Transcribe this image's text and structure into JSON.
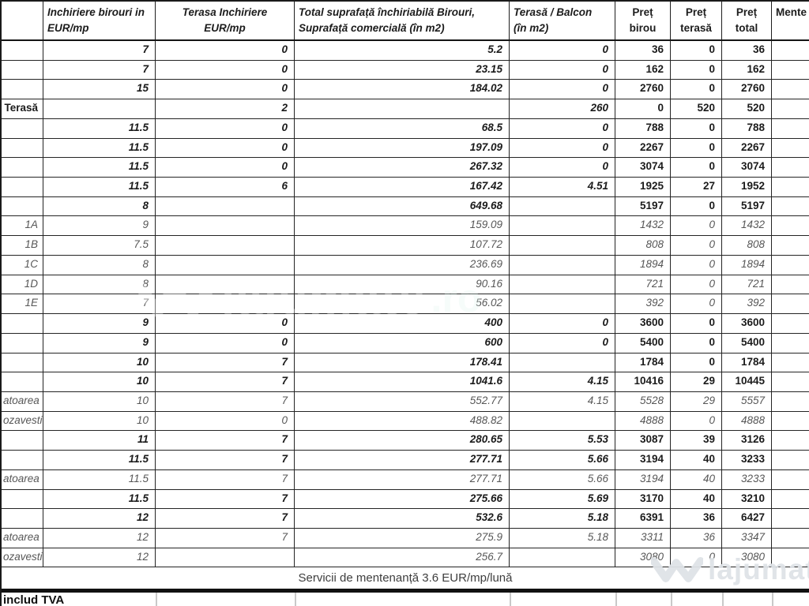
{
  "header": {
    "cols": [
      {
        "l1": "",
        "l2": ""
      },
      {
        "l1": "Inchiriere birouri in",
        "l2": "EUR/mp"
      },
      {
        "l1": "Terasa Inchiriere",
        "l2": "EUR/mp"
      },
      {
        "l1": "Total suprafață închiriabilă Birouri,",
        "l2": "Suprafață comercială (în m2)"
      },
      {
        "l1": "Terasă / Balcon",
        "l2": "(în m2)"
      },
      {
        "l1": "Preț",
        "l2": "birou"
      },
      {
        "l1": "Preț",
        "l2": "terasă"
      },
      {
        "l1": "Preț",
        "l2": "total"
      },
      {
        "l1": "Mente",
        "l2": ""
      }
    ]
  },
  "rows": [
    {
      "label": "",
      "style": "bold",
      "cells": [
        "7",
        "0",
        "5.2",
        "0",
        "36",
        "0",
        "36"
      ]
    },
    {
      "label": "",
      "style": "bold",
      "cells": [
        "7",
        "0",
        "23.15",
        "0",
        "162",
        "0",
        "162"
      ]
    },
    {
      "label": "",
      "style": "bold",
      "cells": [
        "15",
        "0",
        "184.02",
        "0",
        "2760",
        "0",
        "2760"
      ]
    },
    {
      "label": "Terasă",
      "style": "bold",
      "cells": [
        "",
        "2",
        "",
        "260",
        "0",
        "520",
        "520"
      ]
    },
    {
      "label": "",
      "style": "bold",
      "cells": [
        "11.5",
        "0",
        "68.5",
        "0",
        "788",
        "0",
        "788"
      ]
    },
    {
      "label": "",
      "style": "bold",
      "cells": [
        "11.5",
        "0",
        "197.09",
        "0",
        "2267",
        "0",
        "2267"
      ]
    },
    {
      "label": "",
      "style": "bold",
      "cells": [
        "11.5",
        "0",
        "267.32",
        "0",
        "3074",
        "0",
        "3074"
      ]
    },
    {
      "label": "",
      "style": "bold",
      "cells": [
        "11.5",
        "6",
        "167.42",
        "4.51",
        "1925",
        "27",
        "1952"
      ]
    },
    {
      "label": "",
      "style": "bold",
      "cells": [
        "8",
        "",
        "649.68",
        "",
        "5197",
        "0",
        "5197"
      ]
    },
    {
      "label": "1A",
      "style": "sub",
      "cells": [
        "9",
        "",
        "159.09",
        "",
        "1432",
        "0",
        "1432"
      ]
    },
    {
      "label": "1B",
      "style": "sub",
      "cells": [
        "7.5",
        "",
        "107.72",
        "",
        "808",
        "0",
        "808"
      ]
    },
    {
      "label": "1C",
      "style": "sub",
      "cells": [
        "8",
        "",
        "236.69",
        "",
        "1894",
        "0",
        "1894"
      ]
    },
    {
      "label": "1D",
      "style": "sub",
      "cells": [
        "8",
        "",
        "90.16",
        "",
        "721",
        "0",
        "721"
      ]
    },
    {
      "label": "1E",
      "style": "sub",
      "cells": [
        "7",
        "",
        "56.02",
        "",
        "392",
        "0",
        "392"
      ]
    },
    {
      "label": "",
      "style": "bold",
      "cells": [
        "9",
        "0",
        "400",
        "0",
        "3600",
        "0",
        "3600"
      ]
    },
    {
      "label": "",
      "style": "bold",
      "cells": [
        "9",
        "0",
        "600",
        "0",
        "5400",
        "0",
        "5400"
      ]
    },
    {
      "label": "",
      "style": "bold",
      "cells": [
        "10",
        "7",
        "178.41",
        "",
        "1784",
        "0",
        "1784"
      ]
    },
    {
      "label": "",
      "style": "bold",
      "cells": [
        "10",
        "7",
        "1041.6",
        "4.15",
        "10416",
        "29",
        "10445"
      ]
    },
    {
      "label": "atoarea",
      "style": "sub",
      "cells": [
        "10",
        "7",
        "552.77",
        "4.15",
        "5528",
        "29",
        "5557"
      ]
    },
    {
      "label": "ozavesti",
      "style": "sub",
      "cells": [
        "10",
        "0",
        "488.82",
        "",
        "4888",
        "0",
        "4888"
      ]
    },
    {
      "label": "",
      "style": "bold",
      "cells": [
        "11",
        "7",
        "280.65",
        "5.53",
        "3087",
        "39",
        "3126"
      ]
    },
    {
      "label": "",
      "style": "bold",
      "cells": [
        "11.5",
        "7",
        "277.71",
        "5.66",
        "3194",
        "40",
        "3233"
      ]
    },
    {
      "label": "atoarea",
      "style": "sub",
      "cells": [
        "11.5",
        "7",
        "277.71",
        "5.66",
        "3194",
        "40",
        "3233"
      ]
    },
    {
      "label": "",
      "style": "bold",
      "cells": [
        "11.5",
        "7",
        "275.66",
        "5.69",
        "3170",
        "40",
        "3210"
      ]
    },
    {
      "label": "",
      "style": "bold",
      "cells": [
        "12",
        "7",
        "532.6",
        "5.18",
        "6391",
        "36",
        "6427"
      ]
    },
    {
      "label": "atoarea",
      "style": "sub",
      "cells": [
        "12",
        "7",
        "275.9",
        "5.18",
        "3311",
        "36",
        "3347"
      ]
    },
    {
      "label": "ozavesti",
      "style": "sub",
      "cells": [
        "12",
        "",
        "256.7",
        "",
        "3080",
        "0",
        "3080"
      ]
    }
  ],
  "footer": {
    "servicii": "Servicii de mentenanță 3.6 EUR/mp/lună",
    "tva": "includ TVA"
  },
  "watermark": {
    "brand": "lajumate",
    "tld": ".ro"
  },
  "colors": {
    "border": "#242424",
    "sub_text": "#575757",
    "wm_gray": "#dee3e7",
    "wm_teal": "#9ed6cb"
  }
}
